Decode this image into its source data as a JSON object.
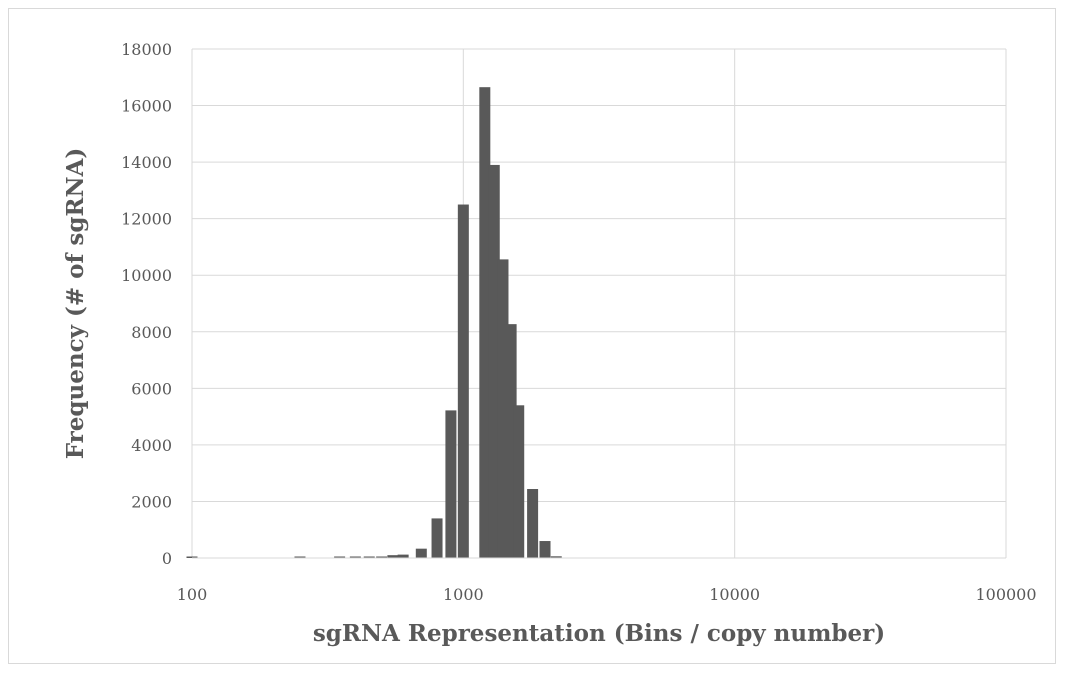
{
  "chart_data": {
    "type": "bar",
    "title": "",
    "xlabel": "sgRNA Representation (Bins / copy number)",
    "ylabel": "Frequency (# of sgRNA)",
    "x_scale": "log",
    "xlim": [
      100,
      100000
    ],
    "ylim": [
      0,
      18000
    ],
    "x_ticks": [
      "100",
      "1000",
      "10000",
      "100000"
    ],
    "y_ticks": [
      "0",
      "2000",
      "4000",
      "6000",
      "8000",
      "10000",
      "12000",
      "14000",
      "16000",
      "18000"
    ],
    "grid": true,
    "legend": "none",
    "bar_color": "#595959",
    "grid_color": "#d9d9d9",
    "series": [
      {
        "x": [
          100,
          200,
          250,
          300,
          350,
          400,
          450,
          500,
          550,
          600,
          700,
          800,
          900,
          1000,
          1200,
          1300,
          1400,
          1500,
          1600,
          1800,
          2000,
          2200,
          2500,
          3000,
          3500,
          4000,
          4500,
          5000
        ],
        "values": [
          40,
          0,
          20,
          0,
          30,
          20,
          50,
          40,
          100,
          120,
          330,
          1400,
          5220,
          12500,
          16650,
          13900,
          10560,
          8270,
          5400,
          2440,
          600,
          60,
          0,
          0,
          0,
          0,
          0,
          0
        ]
      }
    ]
  }
}
